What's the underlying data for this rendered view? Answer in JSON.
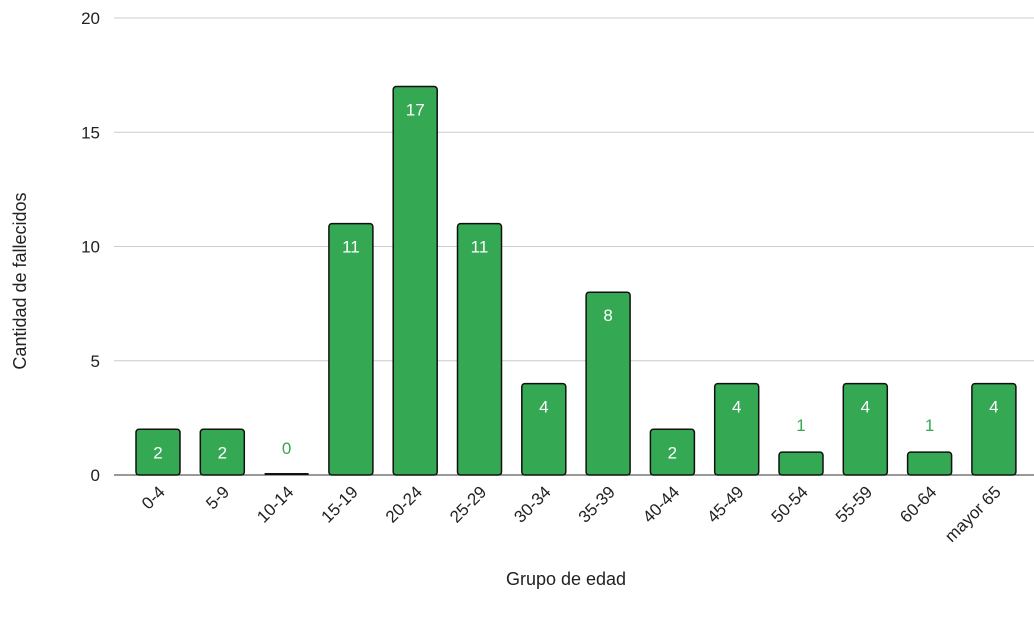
{
  "chart_data": {
    "type": "bar",
    "title": "",
    "xlabel": "Grupo de edad",
    "ylabel": "Cantidad de fallecidos",
    "categories": [
      "0-4",
      "5-9",
      "10-14",
      "15-19",
      "20-24",
      "25-29",
      "30-34",
      "35-39",
      "40-44",
      "45-49",
      "50-54",
      "55-59",
      "60-64",
      "mayor 65"
    ],
    "values": [
      2,
      2,
      0,
      11,
      17,
      11,
      4,
      8,
      2,
      4,
      1,
      4,
      1,
      4
    ],
    "ylim": [
      0,
      20
    ],
    "yticks": [
      0,
      5,
      10,
      15,
      20
    ],
    "grid": true,
    "legend": "none",
    "colors": {
      "bar": "#34a853",
      "bar_outline": "#111111",
      "label_inside": "#ffffff",
      "label_outside": "#34a853",
      "grid": "#cccccc"
    }
  }
}
